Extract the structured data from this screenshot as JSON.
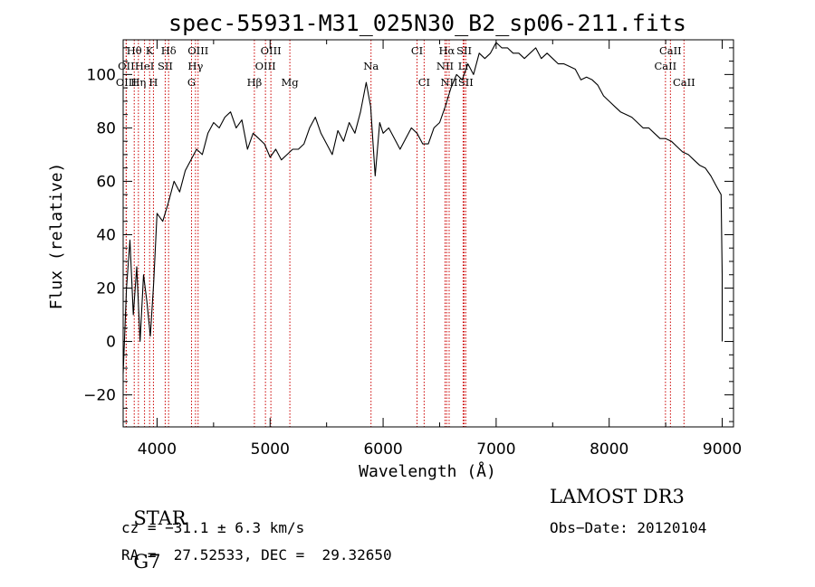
{
  "chart_data": {
    "type": "line",
    "title": "spec-55931-M31_025N30_B2_sp06-211.fits",
    "xlabel": "Wavelength (Å)",
    "ylabel": "Flux (relative)",
    "xlim": [
      3700,
      9100
    ],
    "ylim": [
      -32,
      113
    ],
    "xticks": [
      4000,
      5000,
      6000,
      7000,
      8000,
      9000
    ],
    "yticks": [
      -20,
      0,
      20,
      40,
      60,
      80,
      100
    ],
    "series": [
      {
        "name": "flux",
        "x": [
          3700,
          3730,
          3760,
          3790,
          3820,
          3850,
          3880,
          3910,
          3940,
          3970,
          4000,
          4050,
          4100,
          4150,
          4200,
          4250,
          4300,
          4350,
          4400,
          4450,
          4500,
          4550,
          4600,
          4650,
          4700,
          4750,
          4800,
          4850,
          4900,
          4950,
          5000,
          5050,
          5100,
          5150,
          5200,
          5250,
          5300,
          5350,
          5400,
          5450,
          5500,
          5550,
          5600,
          5650,
          5700,
          5750,
          5800,
          5850,
          5890,
          5930,
          5970,
          6000,
          6050,
          6100,
          6150,
          6200,
          6250,
          6300,
          6350,
          6400,
          6450,
          6500,
          6550,
          6600,
          6650,
          6700,
          6750,
          6800,
          6850,
          6900,
          6950,
          7000,
          7050,
          7100,
          7150,
          7200,
          7250,
          7300,
          7350,
          7400,
          7450,
          7500,
          7550,
          7600,
          7650,
          7700,
          7750,
          7800,
          7850,
          7900,
          7950,
          8000,
          8050,
          8100,
          8150,
          8200,
          8250,
          8300,
          8350,
          8400,
          8450,
          8500,
          8550,
          8600,
          8650,
          8700,
          8750,
          8800,
          8850,
          8900,
          8950,
          8990,
          9000,
          9000
        ],
        "values": [
          -12,
          20,
          38,
          10,
          28,
          0,
          25,
          15,
          2,
          22,
          48,
          45,
          52,
          60,
          56,
          64,
          68,
          72,
          70,
          78,
          82,
          80,
          84,
          86,
          80,
          83,
          72,
          78,
          76,
          74,
          69,
          72,
          68,
          70,
          72,
          72,
          74,
          80,
          84,
          78,
          74,
          70,
          79,
          75,
          82,
          78,
          86,
          97,
          88,
          62,
          82,
          78,
          80,
          76,
          72,
          76,
          80,
          78,
          74,
          74,
          80,
          82,
          88,
          95,
          100,
          98,
          104,
          100,
          108,
          106,
          108,
          112,
          110,
          110,
          108,
          108,
          106,
          108,
          110,
          106,
          108,
          106,
          104,
          104,
          103,
          102,
          98,
          99,
          98,
          96,
          92,
          90,
          88,
          86,
          85,
          84,
          82,
          80,
          80,
          78,
          76,
          76,
          75,
          73,
          71,
          70,
          68,
          66,
          65,
          62,
          58,
          55,
          25,
          0
        ]
      }
    ],
    "emission_lines": [
      {
        "label": "Hθ",
        "wavelength": 3798,
        "tier": 1
      },
      {
        "label": "K",
        "wavelength": 3934,
        "tier": 1
      },
      {
        "label": "Hδ",
        "wavelength": 4102,
        "tier": 1
      },
      {
        "label": "OIII",
        "wavelength": 4363,
        "tier": 1
      },
      {
        "label": "OIII",
        "wavelength": 5007,
        "tier": 1
      },
      {
        "label": "CI",
        "wavelength": 6300,
        "tier": 1
      },
      {
        "label": "Hα",
        "wavelength": 6563,
        "tier": 1
      },
      {
        "label": "SII",
        "wavelength": 6717,
        "tier": 1
      },
      {
        "label": "CaII",
        "wavelength": 8542,
        "tier": 1
      },
      {
        "label": "OII",
        "wavelength": 3727,
        "tier": 2
      },
      {
        "label": "HeI",
        "wavelength": 3889,
        "tier": 2
      },
      {
        "label": "SII",
        "wavelength": 4072,
        "tier": 2
      },
      {
        "label": "Hγ",
        "wavelength": 4340,
        "tier": 2
      },
      {
        "label": "OIII",
        "wavelength": 4959,
        "tier": 2
      },
      {
        "label": "Na",
        "wavelength": 5893,
        "tier": 2
      },
      {
        "label": "NII",
        "wavelength": 6548,
        "tier": 2
      },
      {
        "label": "Li",
        "wavelength": 6708,
        "tier": 2
      },
      {
        "label": "CaII",
        "wavelength": 8498,
        "tier": 2
      },
      {
        "label": "OIII",
        "wavelength": 3727,
        "tier": 3
      },
      {
        "label": "Hη",
        "wavelength": 3835,
        "tier": 3
      },
      {
        "label": "H",
        "wavelength": 3968,
        "tier": 3
      },
      {
        "label": "G",
        "wavelength": 4305,
        "tier": 3
      },
      {
        "label": "Hβ",
        "wavelength": 4861,
        "tier": 3
      },
      {
        "label": "Mg",
        "wavelength": 5175,
        "tier": 3
      },
      {
        "label": "CI",
        "wavelength": 6363,
        "tier": 3
      },
      {
        "label": "NII",
        "wavelength": 6584,
        "tier": 3
      },
      {
        "label": "SII",
        "wavelength": 6731,
        "tier": 3
      },
      {
        "label": "CaII",
        "wavelength": 8662,
        "tier": 3
      }
    ],
    "colors": {
      "spectrum": "#000000",
      "lines": "#cc0000",
      "frame": "#000000"
    }
  },
  "info": {
    "class": "STAR",
    "subclass": "G7",
    "survey": "LAMOST DR3",
    "cz": "cz = −31.1 ± 6.3 km/s",
    "obs_date": "Obs−Date: 20120104",
    "radec": "RA =  27.52533, DEC =  29.32650"
  }
}
